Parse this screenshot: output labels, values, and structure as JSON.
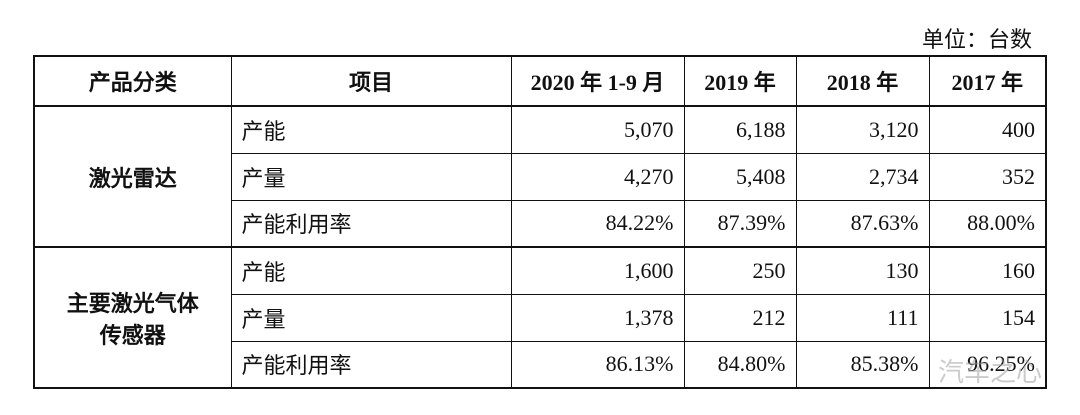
{
  "unit": "单位：台数",
  "table": {
    "header": [
      "产品分类",
      "项目",
      "2020 年 1-9 月",
      "2019 年",
      "2018 年",
      "2017 年"
    ],
    "groups": [
      {
        "name": "激光雷达",
        "rows": [
          {
            "item": "产能",
            "values": [
              "5,070",
              "6,188",
              "3,120",
              "400"
            ]
          },
          {
            "item": "产量",
            "values": [
              "4,270",
              "5,408",
              "2,734",
              "352"
            ]
          },
          {
            "item": "产能利用率",
            "values": [
              "84.22%",
              "87.39%",
              "87.63%",
              "88.00%"
            ]
          }
        ]
      },
      {
        "name": "主要激光气体传感器",
        "rows": [
          {
            "item": "产能",
            "values": [
              "1,600",
              "250",
              "130",
              "160"
            ]
          },
          {
            "item": "产量",
            "values": [
              "1,378",
              "212",
              "111",
              "154"
            ]
          },
          {
            "item": "产能利用率",
            "values": [
              "86.13%",
              "84.80%",
              "85.38%",
              "96.25%"
            ]
          }
        ]
      }
    ]
  },
  "watermark": "汽车之心"
}
